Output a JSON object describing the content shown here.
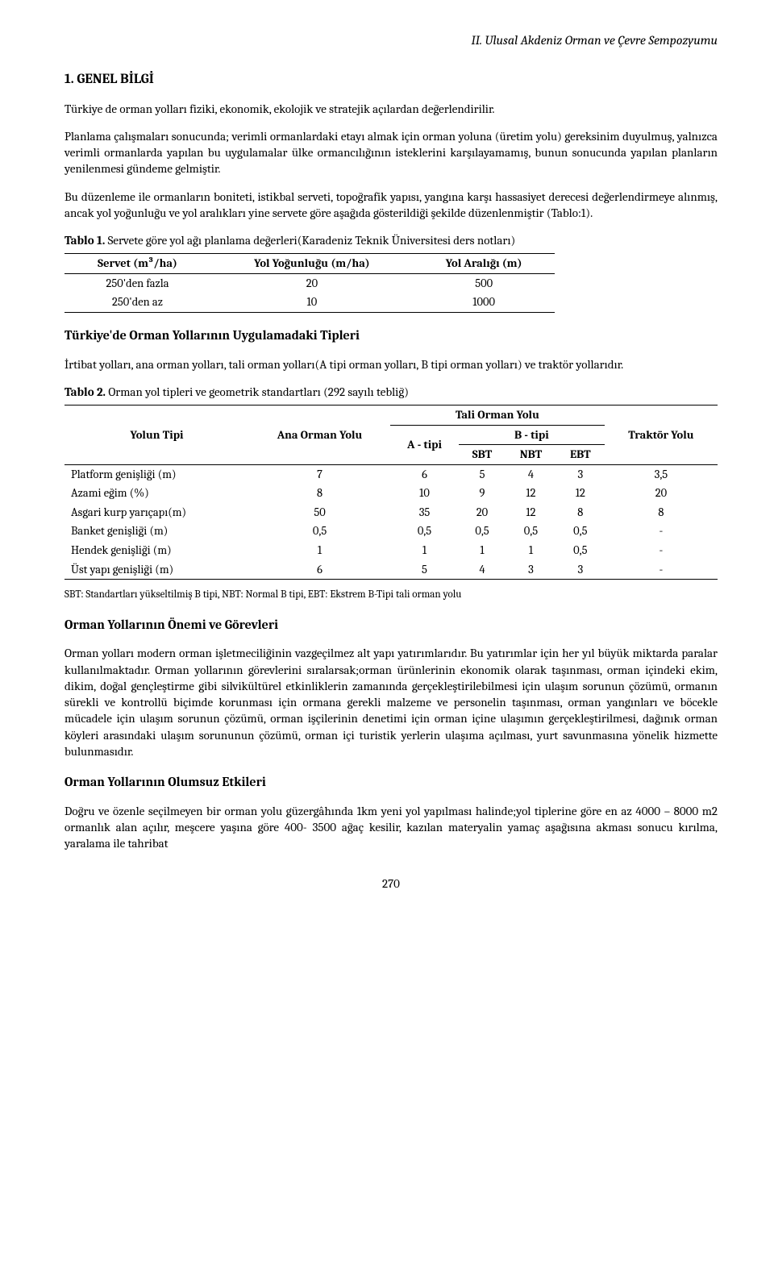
{
  "header": {
    "running_title": "II. Ulusal Akdeniz Orman ve Çevre Sempozyumu"
  },
  "section1": {
    "title": "1. GENEL BİLGİ",
    "p1": "Türkiye de orman yolları fiziki, ekonomik, ekolojik ve stratejik açılardan değerlendirilir.",
    "p2": "Planlama çalışmaları sonucunda; verimli ormanlardaki etayı almak için orman yoluna (üretim yolu) gereksinim duyulmuş, yalnızca verimli ormanlarda yapılan bu uygulamalar ülke ormancılığının isteklerini karşılayamamış, bunun sonucunda yapılan planların yenilenmesi gündeme gelmiştir.",
    "p3": "Bu düzenleme ile ormanların boniteti, istikbal serveti, topoğrafik yapısı, yangına karşı hassasiyet derecesi değerlendirmeye alınmış, ancak yol yoğunluğu ve yol aralıkları yine servete göre aşağıda gösterildiği şekilde düzenlenmiştir (Tablo:1)."
  },
  "table1": {
    "caption_label": "Tablo 1.",
    "caption_text": " Servete göre yol ağı planlama değerleri(Karadeniz Teknik Üniversitesi ders notları)",
    "columns": [
      "Servet (m³/ha)",
      "Yol Yoğunluğu (m/ha)",
      "Yol Aralığı (m)"
    ],
    "rows": [
      [
        "250'den fazla",
        "20",
        "500"
      ],
      [
        "250'den az",
        "10",
        "1000"
      ]
    ]
  },
  "section2": {
    "title": "Türkiye'de Orman Yollarının Uygulamadaki Tipleri",
    "p1": "İrtibat yolları, ana orman yolları, tali orman yolları(A tipi orman yolları, B tipi orman yolları) ve traktör yollarıdır."
  },
  "table2": {
    "caption_label": "Tablo 2.",
    "caption_text": " Orman yol tipleri ve geometrik standartları (292 sayılı tebliğ)",
    "head": {
      "yolun_tipi": "Yolun Tipi",
      "ana_orman": "Ana Orman Yolu",
      "tali": "Tali Orman Yolu",
      "a_tipi": "A - tipi",
      "b_tipi": "B - tipi",
      "sbt": "SBT",
      "nbt": "NBT",
      "ebt": "EBT",
      "traktor": "Traktör Yolu"
    },
    "rows": [
      {
        "label": "Platform genişliği (m)",
        "v": [
          "7",
          "6",
          "5",
          "4",
          "3",
          "3,5"
        ]
      },
      {
        "label": "Azami eğim (%)",
        "v": [
          "8",
          "10",
          "9",
          "12",
          "12",
          "20"
        ]
      },
      {
        "label": "Asgari kurp yarıçapı(m)",
        "v": [
          "50",
          "35",
          "20",
          "12",
          "8",
          "8"
        ]
      },
      {
        "label": "Banket genişliği (m)",
        "v": [
          "0,5",
          "0,5",
          "0,5",
          "0,5",
          "0,5",
          "-"
        ]
      },
      {
        "label": "Hendek genişliği (m)",
        "v": [
          "1",
          "1",
          "1",
          "1",
          "0,5",
          "-"
        ]
      },
      {
        "label": "Üst yapı genişliği (m)",
        "v": [
          "6",
          "5",
          "4",
          "3",
          "3",
          "-"
        ]
      }
    ],
    "footnote": "SBT: Standartları yükseltilmiş B tipi, NBT: Normal B tipi, EBT: Ekstrem B-Tipi tali orman yolu"
  },
  "section3": {
    "title": "Orman Yollarının Önemi ve Görevleri",
    "p1": "Orman yolları modern orman işletmeciliğinin vazgeçilmez alt yapı yatırımlarıdır. Bu yatırımlar için her yıl büyük miktarda paralar kullanılmaktadır. Orman yollarının görevlerini sıralarsak;orman ürünlerinin ekonomik olarak taşınması, orman içindeki ekim, dikim, doğal gençleştirme gibi silvikültürel etkinliklerin zamanında gerçekleştirilebilmesi için ulaşım sorunun çözümü, ormanın sürekli ve kontrollü biçimde korunması için ormana gerekli malzeme ve personelin taşınması, orman yangınları ve böcekle mücadele için ulaşım sorunun çözümü, orman işçilerinin denetimi için orman içine ulaşımın gerçekleştirilmesi, dağınık orman köyleri arasındaki ulaşım sorununun çözümü, orman içi turistik yerlerin ulaşıma açılması, yurt savunmasına yönelik hizmette bulunmasıdır."
  },
  "section4": {
    "title": "Orman Yollarının Olumsuz Etkileri",
    "p1": "Doğru ve özenle seçilmeyen bir orman yolu güzergâhında 1km yeni yol yapılması halinde;yol tiplerine göre en az 4000 – 8000 m2 ormanlık alan açılır, meşcere yaşına göre 400- 3500 ağaç kesilir, kazılan materyalin yamaç aşağısına akması sonucu kırılma, yaralama ile tahribat"
  },
  "page_number": "270"
}
